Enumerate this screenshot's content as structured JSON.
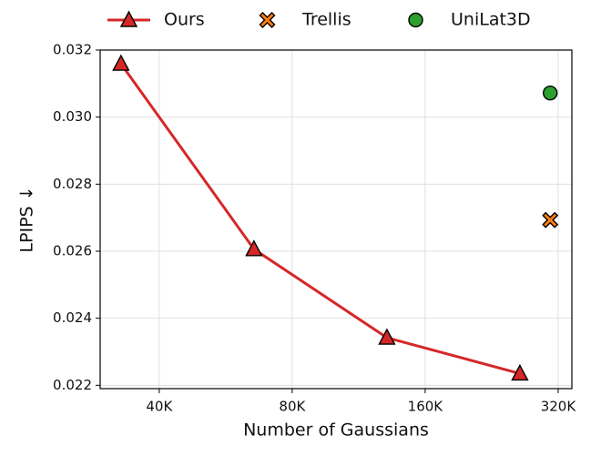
{
  "chart_data": {
    "type": "line",
    "xlabel": "Number of Gaussians",
    "ylabel": "LPIPS ↓",
    "xscale": "log",
    "grid": true,
    "legend": "top",
    "xlim": [
      29400,
      343700
    ],
    "ylim": [
      0.0219,
      0.032
    ],
    "xticks": [
      {
        "value": 40000,
        "label": "40K"
      },
      {
        "value": 80000,
        "label": "80K"
      },
      {
        "value": 160000,
        "label": "160K"
      },
      {
        "value": 320000,
        "label": "320K"
      }
    ],
    "yticks": [
      0.022,
      0.024,
      0.026,
      0.028,
      {
        "value": 0.03,
        "label": "0.030"
      },
      0.032
    ],
    "series": [
      {
        "name": "Ours",
        "color": "#d62728",
        "marker": "triangle",
        "x": [
          32768,
          65536,
          131072,
          262144
        ],
        "values": [
          0.03159,
          0.02606,
          0.02342,
          0.02235
        ]
      },
      {
        "name": "Trellis",
        "color": "#ff7f0e",
        "marker": "x",
        "x": [
          307000
        ],
        "values": [
          0.02693
        ]
      },
      {
        "name": "UniLat3D",
        "color": "#2ca02c",
        "marker": "circle",
        "x": [
          307000
        ],
        "values": [
          0.03072
        ]
      }
    ]
  }
}
